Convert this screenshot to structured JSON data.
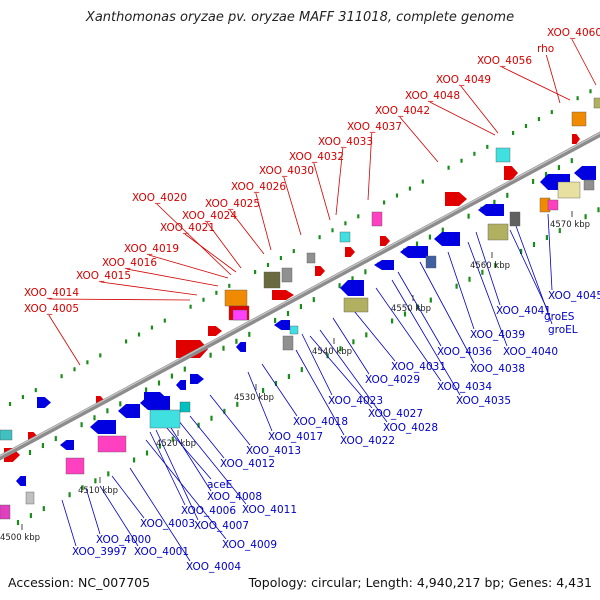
{
  "title": "Xanthomonas oryzae pv. oryzae MAFF 311018, complete genome",
  "footer": {
    "accession": "Accession: NC_007705",
    "summary": "Topology: circular; Length: 4,940,217 bp; Genes: 4,431"
  },
  "ticks": [
    "4500 kbp",
    "4510 kbp",
    "4520 kbp",
    "4530 kbp",
    "4540 kbp",
    "4550 kbp",
    "4560 kbp",
    "4570 kbp"
  ],
  "forward_labels": [
    "XOO_4005",
    "XOO_4014",
    "XOO_4015",
    "XOO_4016",
    "XOO_4019",
    "XOO_4021",
    "XOO_4024",
    "XOO_4020",
    "XOO_4025",
    "XOO_4026",
    "XOO_4030",
    "XOO_4032",
    "XOO_4033",
    "XOO_4037",
    "XOO_4042",
    "XOO_4048",
    "XOO_4049",
    "rho",
    "XOO_4056",
    "XOO_4060"
  ],
  "reverse_labels": [
    "XOO_3997",
    "XOO_4000",
    "XOO_4001",
    "XOO_4003",
    "XOO_4004",
    "aceE",
    "XOO_4008",
    "XOO_4006",
    "XOO_4007",
    "XOO_4009",
    "XOO_4011",
    "XOO_4012",
    "XOO_4013",
    "XOO_4017",
    "XOO_4018",
    "XOO_4022",
    "XOO_4023",
    "XOO_4027",
    "XOO_4028",
    "XOO_4029",
    "XOO_4031",
    "XOO_4034",
    "XOO_4035",
    "XOO_4036",
    "XOO_4038",
    "XOO_4039",
    "XOO_4040",
    "XOO_4041",
    "groES",
    "groEL",
    "XOO_4045"
  ],
  "colors": {
    "forward_label": "#d40000",
    "reverse_label": "#0000c8",
    "backbone": "#8c8c8c",
    "gc_marks": "#1a8c1a"
  }
}
